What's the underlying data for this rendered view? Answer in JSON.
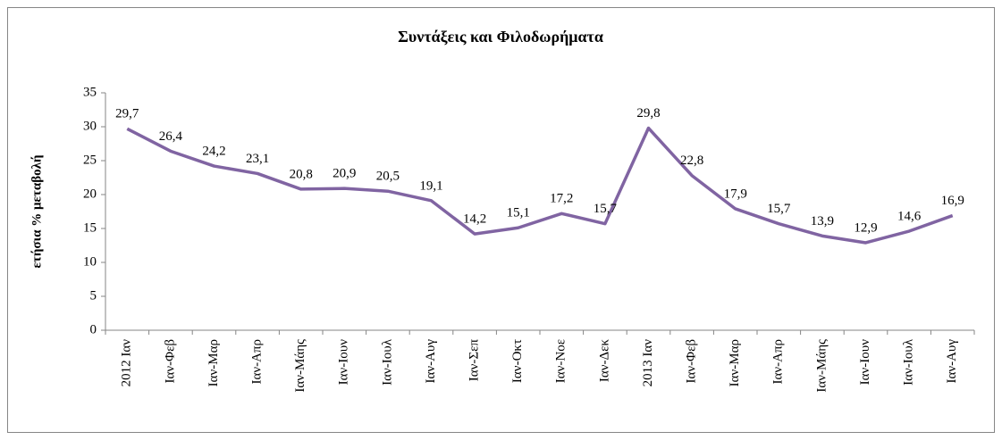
{
  "chart_data": {
    "type": "line",
    "title": "Συντάξεις και Φιλοδωρήματα",
    "y_label": "ετήσια % μεταβολή",
    "categories": [
      "2012 Ιαν",
      "Ιαν-Φεβ",
      "Ιαν-Μαρ",
      "Ιαν-Απρ",
      "Ιαν-Μάης",
      "Ιαν-Ιουν",
      "Ιαν-Ιουλ",
      "Ιαν-Αυγ",
      "Ιαν-Σεπ",
      "Ιαν-Οκτ",
      "Ιαν-Νοε",
      "Ιαν-Δεκ",
      "2013 Ιαν",
      "Ιαν-Φεβ",
      "Ιαν-Μαρ",
      "Ιαν-Απρ",
      "Ιαν-Μάης",
      "Ιαν-Ιουν",
      "Ιαν-Ιουλ",
      "Ιαν-Αυγ"
    ],
    "values": [
      29.7,
      26.4,
      24.2,
      23.1,
      20.8,
      20.9,
      20.5,
      19.1,
      14.2,
      15.1,
      17.2,
      15.7,
      29.8,
      22.8,
      17.9,
      15.7,
      13.9,
      12.9,
      14.6,
      16.9
    ],
    "value_labels": [
      "29,7",
      "26,4",
      "24,2",
      "23,1",
      "20,8",
      "20,9",
      "20,5",
      "19,1",
      "14,2",
      "15,1",
      "17,2",
      "15,7",
      "29,8",
      "22,8",
      "17,9",
      "15,7",
      "13,9",
      "12,9",
      "14,6",
      "16,9"
    ],
    "color": "#8064a2",
    "ylim": [
      0,
      35
    ],
    "yticks": [
      0,
      5,
      10,
      15,
      20,
      25,
      30,
      35
    ],
    "grid": false
  }
}
